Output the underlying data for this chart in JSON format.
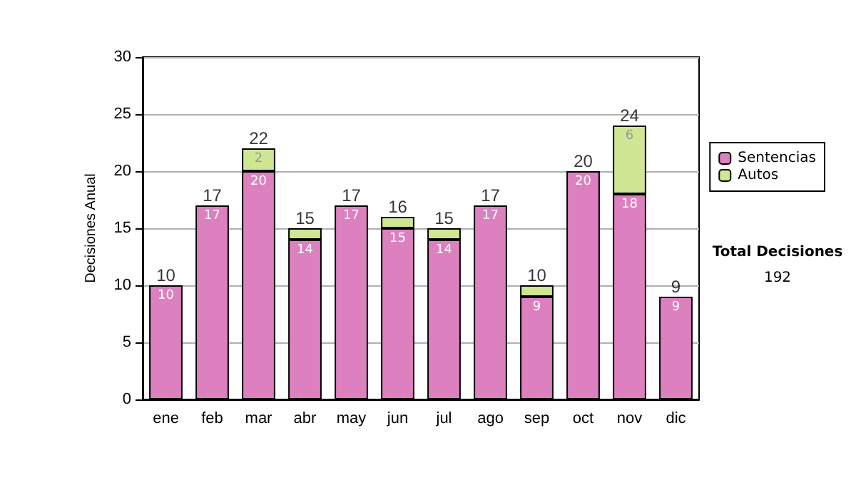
{
  "chart_data": {
    "type": "bar",
    "stacked": true,
    "ylabel": "Decisiones Anual",
    "categories": [
      "ene",
      "feb",
      "mar",
      "abr",
      "may",
      "jun",
      "jul",
      "ago",
      "sep",
      "oct",
      "nov",
      "dic"
    ],
    "series": [
      {
        "name": "Sentencias",
        "color": "#dd80c0",
        "values": [
          10,
          17,
          20,
          14,
          17,
          15,
          14,
          17,
          9,
          20,
          18,
          9
        ],
        "value_labels": [
          "10",
          "17",
          "20",
          "14",
          "17",
          "15",
          "14",
          "17",
          "9",
          "20",
          "18",
          "9"
        ]
      },
      {
        "name": "Autos",
        "color": "#cfe693",
        "values": [
          null,
          null,
          2,
          1,
          null,
          1,
          1,
          null,
          1,
          null,
          6,
          null
        ],
        "value_labels": [
          null,
          null,
          "2",
          null,
          null,
          null,
          null,
          null,
          null,
          null,
          "6",
          null
        ]
      }
    ],
    "totals": [
      "10",
      "17",
      "22",
      "15",
      "17",
      "16",
      "15",
      "17",
      "10",
      "20",
      "24",
      "9"
    ],
    "ylim": [
      0,
      30
    ],
    "yticks": [
      0,
      5,
      10,
      15,
      20,
      25,
      30
    ],
    "grid": "y",
    "legend": "right",
    "annotations": [
      "Total Decisiones",
      "192"
    ]
  }
}
